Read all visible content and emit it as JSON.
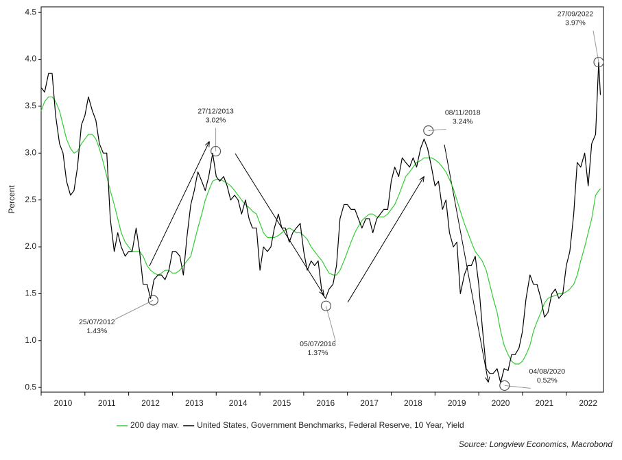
{
  "chart_data": {
    "type": "line",
    "y_label": "Percent",
    "source": "Source: Longview Economics, Macrobond",
    "xlim": [
      2010,
      2022.85
    ],
    "xticks": [
      2010,
      2011,
      2012,
      2013,
      2014,
      2015,
      2016,
      2017,
      2018,
      2019,
      2020,
      2021,
      2022
    ],
    "ylim": [
      0.45,
      4.56
    ],
    "yticks": [
      {
        "value": 0.5,
        "label": "0.5"
      },
      {
        "value": 1,
        "label": "1.0"
      },
      {
        "value": 1.5,
        "label": "1.5"
      },
      {
        "value": 2,
        "label": "2.0"
      },
      {
        "value": 2.5,
        "label": "2.5"
      },
      {
        "value": 3,
        "label": "3.0"
      },
      {
        "value": 3.5,
        "label": "3.5"
      },
      {
        "value": 4,
        "label": "4.0"
      },
      {
        "value": 4.5,
        "label": "4.5"
      }
    ],
    "x": [
      2010,
      2010.08,
      2010.17,
      2010.25,
      2010.33,
      2010.42,
      2010.5,
      2010.58,
      2010.67,
      2010.75,
      2010.83,
      2010.92,
      2011,
      2011.08,
      2011.17,
      2011.25,
      2011.33,
      2011.42,
      2011.5,
      2011.58,
      2011.67,
      2011.75,
      2011.83,
      2011.92,
      2012,
      2012.08,
      2012.17,
      2012.25,
      2012.33,
      2012.42,
      2012.5,
      2012.58,
      2012.67,
      2012.75,
      2012.83,
      2012.92,
      2013,
      2013.08,
      2013.17,
      2013.25,
      2013.33,
      2013.42,
      2013.5,
      2013.58,
      2013.67,
      2013.75,
      2013.83,
      2013.92,
      2014,
      2014.08,
      2014.17,
      2014.25,
      2014.33,
      2014.42,
      2014.5,
      2014.58,
      2014.67,
      2014.75,
      2014.83,
      2014.92,
      2015,
      2015.08,
      2015.17,
      2015.25,
      2015.33,
      2015.42,
      2015.5,
      2015.58,
      2015.67,
      2015.75,
      2015.83,
      2015.92,
      2016,
      2016.08,
      2016.17,
      2016.25,
      2016.33,
      2016.42,
      2016.5,
      2016.58,
      2016.67,
      2016.75,
      2016.83,
      2016.92,
      2017,
      2017.08,
      2017.17,
      2017.25,
      2017.33,
      2017.42,
      2017.5,
      2017.58,
      2017.67,
      2017.75,
      2017.83,
      2017.92,
      2018,
      2018.08,
      2018.17,
      2018.25,
      2018.33,
      2018.42,
      2018.5,
      2018.58,
      2018.67,
      2018.75,
      2018.83,
      2018.92,
      2019,
      2019.08,
      2019.17,
      2019.25,
      2019.33,
      2019.42,
      2019.5,
      2019.58,
      2019.67,
      2019.75,
      2019.83,
      2019.92,
      2020,
      2020.08,
      2020.17,
      2020.25,
      2020.33,
      2020.42,
      2020.5,
      2020.58,
      2020.67,
      2020.75,
      2020.83,
      2020.92,
      2021,
      2021.08,
      2021.17,
      2021.25,
      2021.33,
      2021.42,
      2021.5,
      2021.58,
      2021.67,
      2021.75,
      2021.83,
      2021.92,
      2022,
      2022.08,
      2022.17,
      2022.25,
      2022.33,
      2022.42,
      2022.5,
      2022.58,
      2022.67,
      2022.74,
      2022.78
    ],
    "series": [
      {
        "name": "200 day mav.",
        "color": "#33cc33",
        "values": [
          3.45,
          3.55,
          3.6,
          3.6,
          3.55,
          3.45,
          3.3,
          3.15,
          3.05,
          3.0,
          3.02,
          3.1,
          3.15,
          3.2,
          3.2,
          3.15,
          3.05,
          2.9,
          2.75,
          2.6,
          2.45,
          2.3,
          2.15,
          2.05,
          2.0,
          1.95,
          1.95,
          1.95,
          1.9,
          1.8,
          1.75,
          1.72,
          1.7,
          1.72,
          1.75,
          1.75,
          1.72,
          1.72,
          1.75,
          1.8,
          1.85,
          1.9,
          2.05,
          2.2,
          2.35,
          2.5,
          2.6,
          2.7,
          2.72,
          2.72,
          2.7,
          2.68,
          2.65,
          2.6,
          2.55,
          2.5,
          2.45,
          2.42,
          2.38,
          2.35,
          2.25,
          2.15,
          2.1,
          2.1,
          2.1,
          2.12,
          2.15,
          2.18,
          2.2,
          2.18,
          2.15,
          2.15,
          2.12,
          2.08,
          2.0,
          1.95,
          1.9,
          1.85,
          1.78,
          1.72,
          1.7,
          1.7,
          1.75,
          1.85,
          1.95,
          2.05,
          2.15,
          2.22,
          2.28,
          2.32,
          2.35,
          2.35,
          2.32,
          2.32,
          2.32,
          2.35,
          2.4,
          2.45,
          2.55,
          2.65,
          2.75,
          2.8,
          2.85,
          2.9,
          2.92,
          2.95,
          2.95,
          2.95,
          2.93,
          2.9,
          2.85,
          2.8,
          2.72,
          2.62,
          2.5,
          2.38,
          2.25,
          2.15,
          2.05,
          1.95,
          1.9,
          1.85,
          1.75,
          1.6,
          1.45,
          1.3,
          1.1,
          0.95,
          0.85,
          0.78,
          0.75,
          0.75,
          0.78,
          0.85,
          0.95,
          1.1,
          1.2,
          1.3,
          1.4,
          1.45,
          1.47,
          1.48,
          1.5,
          1.5,
          1.52,
          1.55,
          1.6,
          1.7,
          1.85,
          2.0,
          2.15,
          2.3,
          2.55,
          2.6,
          2.62
        ]
      },
      {
        "name": "United States, Government Benchmarks, Federal Reserve, 10 Year, Yield",
        "color": "#000000",
        "values": [
          3.7,
          3.65,
          3.85,
          3.85,
          3.4,
          3.1,
          3.0,
          2.7,
          2.55,
          2.6,
          2.85,
          3.3,
          3.4,
          3.6,
          3.45,
          3.35,
          3.1,
          3.0,
          3.0,
          2.3,
          1.95,
          2.15,
          2.0,
          1.9,
          1.95,
          1.95,
          2.2,
          1.95,
          1.6,
          1.6,
          1.45,
          1.65,
          1.7,
          1.7,
          1.65,
          1.75,
          1.95,
          1.95,
          1.9,
          1.7,
          2.1,
          2.45,
          2.6,
          2.8,
          2.7,
          2.6,
          2.75,
          3.0,
          2.75,
          2.7,
          2.75,
          2.65,
          2.5,
          2.55,
          2.5,
          2.35,
          2.5,
          2.3,
          2.2,
          2.2,
          1.75,
          2.0,
          1.95,
          2.0,
          2.2,
          2.35,
          2.2,
          2.2,
          2.05,
          2.15,
          2.2,
          2.25,
          1.95,
          1.75,
          1.85,
          1.8,
          1.85,
          1.5,
          1.45,
          1.55,
          1.6,
          1.8,
          2.3,
          2.45,
          2.45,
          2.4,
          2.4,
          2.3,
          2.2,
          2.3,
          2.3,
          2.15,
          2.3,
          2.35,
          2.4,
          2.4,
          2.7,
          2.85,
          2.75,
          2.95,
          2.9,
          2.85,
          2.95,
          2.85,
          3.05,
          3.15,
          3.05,
          2.85,
          2.65,
          2.7,
          2.4,
          2.5,
          2.15,
          2.0,
          2.05,
          1.5,
          1.7,
          1.8,
          1.8,
          1.9,
          1.6,
          1.15,
          0.7,
          0.65,
          0.65,
          0.7,
          0.55,
          0.7,
          0.68,
          0.85,
          0.85,
          0.92,
          1.1,
          1.45,
          1.7,
          1.6,
          1.6,
          1.45,
          1.25,
          1.3,
          1.5,
          1.55,
          1.45,
          1.5,
          1.8,
          1.95,
          2.35,
          2.9,
          2.85,
          3.0,
          2.65,
          3.1,
          3.2,
          3.97,
          3.62
        ]
      }
    ],
    "annotations": [
      {
        "date": "25/07/2012",
        "x": 2012.56,
        "value": 1.43,
        "value_label": "1.43%"
      },
      {
        "date": "27/12/2013",
        "x": 2013.99,
        "value": 3.02,
        "value_label": "3.02%"
      },
      {
        "date": "05/07/2016",
        "x": 2016.51,
        "value": 1.37,
        "value_label": "1.37%"
      },
      {
        "date": "08/11/2018",
        "x": 2018.85,
        "value": 3.24,
        "value_label": "3.24%"
      },
      {
        "date": "04/08/2020",
        "x": 2020.59,
        "value": 0.52,
        "value_label": "0.52%"
      },
      {
        "date": "27/09/2022",
        "x": 2022.74,
        "value": 3.97,
        "value_label": "3.97%"
      }
    ]
  }
}
